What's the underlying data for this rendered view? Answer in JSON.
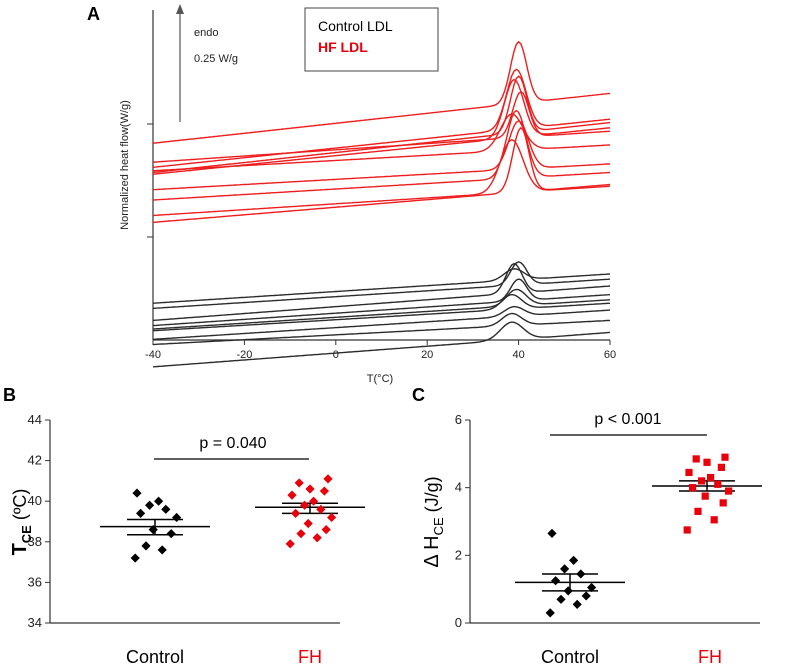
{
  "chart_data": [
    {
      "panel": "A",
      "type": "line",
      "xlabel": "T(°C)",
      "ylabel": "Normalized heat flow(W/g)",
      "xlim": [
        -40,
        60
      ],
      "xticks": [
        "-40",
        "-20",
        "0",
        "20",
        "40",
        "60"
      ],
      "scale_bar": {
        "direction": "endo",
        "value": "0.25 W/g"
      },
      "legend": [
        {
          "label": "Control LDL",
          "color": "#000000"
        },
        {
          "label": "HF  LDL",
          "color": "#e8000b"
        }
      ],
      "series": [
        {
          "group": "HF LDL",
          "color": "#ee1c1c",
          "curves": [
            {
              "start": 0.33,
              "end": 0.62,
              "peak": 0.92,
              "peak_x": 40.0,
              "width": 2.5,
              "end_x": 60
            },
            {
              "start": 0.19,
              "end": 0.47,
              "peak": 0.76,
              "peak_x": 39.5,
              "width": 3.0,
              "end_x": 60
            },
            {
              "start": 0.16,
              "end": 0.45,
              "peak": 0.72,
              "peak_x": 40.0,
              "width": 2.5,
              "end_x": 60
            },
            {
              "start": 0.15,
              "end": 0.42,
              "peak": 0.7,
              "peak_x": 39.0,
              "width": 3.0,
              "end_x": 60
            },
            {
              "start": 0.22,
              "end": 0.4,
              "peak": 0.63,
              "peak_x": 40.5,
              "width": 2.5,
              "end_x": 60
            },
            {
              "start": 0.17,
              "end": 0.32,
              "peak": 0.5,
              "peak_x": 38.5,
              "width": 3.5,
              "end_x": 60
            },
            {
              "start": 0.06,
              "end": 0.21,
              "peak": 0.46,
              "peak_x": 40.0,
              "width": 3.0,
              "end_x": 60
            },
            {
              "start": 0.0,
              "end": 0.16,
              "peak": 0.52,
              "peak_x": 39.5,
              "width": 3.0,
              "end_x": 60
            },
            {
              "start": -0.09,
              "end": 0.08,
              "peak": 0.35,
              "peak_x": 38.5,
              "width": 3.5,
              "end_x": 60
            },
            {
              "start": -0.13,
              "end": 0.09,
              "peak": 0.42,
              "peak_x": 40.5,
              "width": 2.5,
              "end_x": 60
            }
          ]
        },
        {
          "group": "Control LDL",
          "color": "#2b2b2b",
          "curves": [
            {
              "start": -0.6,
              "end": -0.43,
              "peak": -0.4,
              "peak_x": 39.0,
              "width": 3.0,
              "end_x": 60
            },
            {
              "start": -0.63,
              "end": -0.46,
              "peak": -0.36,
              "peak_x": 40.0,
              "width": 2.5,
              "end_x": 60
            },
            {
              "start": -0.7,
              "end": -0.5,
              "peak": -0.37,
              "peak_x": 39.0,
              "width": 2.5,
              "end_x": 60
            },
            {
              "start": -0.73,
              "end": -0.55,
              "peak": -0.46,
              "peak_x": 40.0,
              "width": 2.5,
              "end_x": 60
            },
            {
              "start": -0.75,
              "end": -0.58,
              "peak": -0.52,
              "peak_x": 39.5,
              "width": 3.0,
              "end_x": 60
            },
            {
              "start": -0.76,
              "end": -0.6,
              "peak": -0.55,
              "peak_x": 38.5,
              "width": 3.0,
              "end_x": 60
            },
            {
              "start": -0.81,
              "end": -0.64,
              "peak": -0.62,
              "peak_x": 39.0,
              "width": 3.0,
              "end_x": 60
            },
            {
              "start": -0.84,
              "end": -0.7,
              "peak": -0.66,
              "peak_x": 38.5,
              "width": 3.0,
              "end_x": 60
            },
            {
              "start": -0.97,
              "end": -0.77,
              "peak": -0.71,
              "peak_x": 38.5,
              "width": 3.5,
              "end_x": 60
            }
          ]
        }
      ]
    },
    {
      "panel": "B",
      "type": "scatter",
      "ylabel_main": "T",
      "ylabel_sub": "CE",
      "ylabel_unit": " (ºC)",
      "ylim": [
        34,
        44
      ],
      "yticks": [
        "34",
        "36",
        "38",
        "40",
        "42",
        "44"
      ],
      "categories": [
        "Control",
        "FH"
      ],
      "category_colors": [
        "#000000",
        "#e8000b"
      ],
      "annotation": "p = 0.040",
      "groups": [
        {
          "name": "Control",
          "color": "#000000",
          "marker": "diamond",
          "mean": 38.75,
          "sem_low": 38.35,
          "sem_high": 39.1,
          "points": [
            37.2,
            37.6,
            37.8,
            38.4,
            38.6,
            39.2,
            39.4,
            39.6,
            39.8,
            40.0,
            40.4
          ]
        },
        {
          "name": "FH",
          "color": "#e8000b",
          "marker": "diamond",
          "mean": 39.7,
          "sem_low": 39.4,
          "sem_high": 39.9,
          "points": [
            37.9,
            38.2,
            38.4,
            38.6,
            38.9,
            39.2,
            39.4,
            39.6,
            39.8,
            40.0,
            40.3,
            40.5,
            40.6,
            40.9,
            41.1
          ]
        }
      ]
    },
    {
      "panel": "C",
      "type": "scatter",
      "ylabel_main": "Δ H",
      "ylabel_sub": "CE",
      "ylabel_unit": " (J/g)",
      "ylim": [
        0,
        6
      ],
      "yticks": [
        "0",
        "2",
        "4",
        "6"
      ],
      "categories": [
        "Control",
        "FH"
      ],
      "category_colors": [
        "#000000",
        "#e8000b"
      ],
      "annotation": "p < 0.001",
      "groups": [
        {
          "name": "Control",
          "color": "#000000",
          "marker": "diamond",
          "mean": 1.2,
          "sem_low": 0.95,
          "sem_high": 1.45,
          "points": [
            0.3,
            0.55,
            0.7,
            0.8,
            0.95,
            1.05,
            1.25,
            1.45,
            1.6,
            1.85,
            2.65
          ]
        },
        {
          "name": "FH",
          "color": "#e8000b",
          "marker": "square",
          "mean": 4.05,
          "sem_low": 3.9,
          "sem_high": 4.2,
          "points": [
            2.75,
            3.05,
            3.3,
            3.55,
            3.75,
            3.9,
            4.0,
            4.1,
            4.2,
            4.3,
            4.45,
            4.6,
            4.75,
            4.85,
            4.9
          ]
        }
      ]
    }
  ],
  "panels": {
    "a": "A",
    "b": "B",
    "c": "C"
  }
}
